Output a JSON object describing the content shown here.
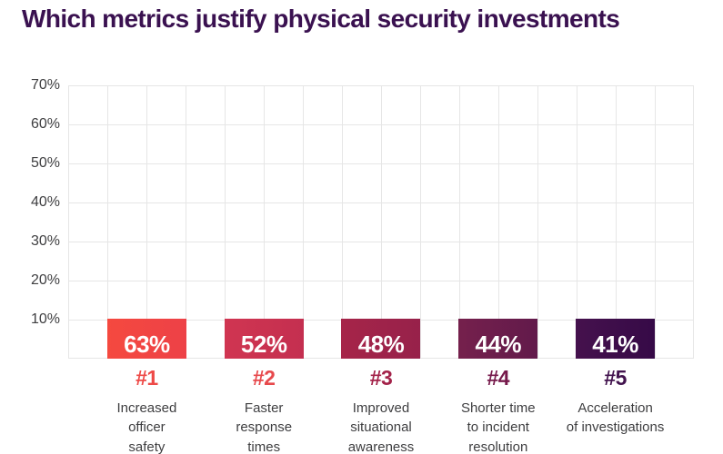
{
  "title": "Which metrics justify physical security investments",
  "colors": {
    "title": "#3A1150",
    "axis_text": "#3F3F41",
    "grid": "#E6E6E6",
    "value_label": "#FFFFFF",
    "category_text": "#3E3E40"
  },
  "chart_data": {
    "type": "bar",
    "title": "Which metrics justify physical security investments",
    "xlabel": "",
    "ylabel": "",
    "ylim": [
      0,
      70
    ],
    "grid": true,
    "y_axis": {
      "max": 70,
      "min": 0,
      "ticks": [
        "70%",
        "60%",
        "50%",
        "40%",
        "30%",
        "20%",
        "10%"
      ]
    },
    "categories": [
      "Increased officer safety",
      "Faster response times",
      "Improved situational awareness",
      "Shorter time to incident resolution",
      "Acceleration of investigations"
    ],
    "values": [
      63,
      52,
      48,
      44,
      41
    ],
    "bars": [
      {
        "rank": "#1",
        "value": 63,
        "value_label": "63%",
        "category": "Increased\nofficer\nsafety",
        "color_left": "#F5493F",
        "color_right": "#ED4147",
        "rank_color": "#EE4A47"
      },
      {
        "rank": "#2",
        "value": 52,
        "value_label": "52%",
        "category": "Faster\nresponse\ntimes",
        "color_left": "#D03551",
        "color_right": "#C42F50",
        "rank_color": "#E7494C"
      },
      {
        "rank": "#3",
        "value": 48,
        "value_label": "48%",
        "category": "Improved\nsituational\nawareness",
        "color_left": "#A62549",
        "color_right": "#97214A",
        "rank_color": "#A32249"
      },
      {
        "rank": "#4",
        "value": 44,
        "value_label": "44%",
        "category": "Shorter time\nto incident\nresolution",
        "color_left": "#75204C",
        "color_right": "#621A4B",
        "rank_color": "#76194B"
      },
      {
        "rank": "#5",
        "value": 41,
        "value_label": "41%",
        "category": "Acceleration\nof investigations",
        "color_left": "#45114D",
        "color_right": "#360A47",
        "rank_color": "#42134E"
      }
    ]
  }
}
